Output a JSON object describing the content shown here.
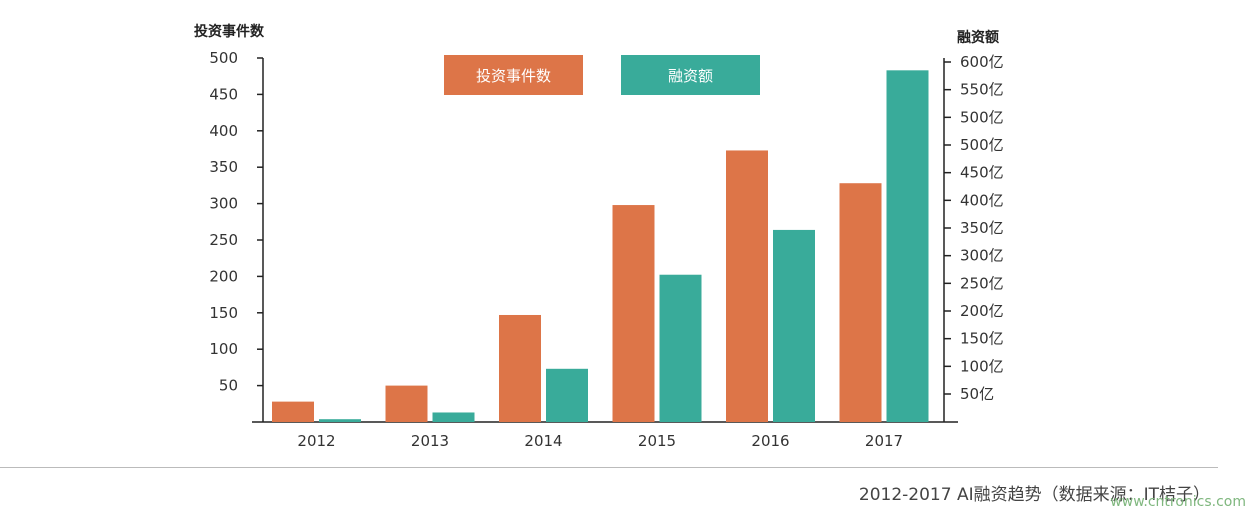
{
  "header_fragment": "",
  "chart_data": {
    "type": "bar",
    "categories": [
      "2012",
      "2013",
      "2014",
      "2015",
      "2016",
      "2017"
    ],
    "series": [
      {
        "name": "投资事件数",
        "values": [
          28,
          50,
          147,
          298,
          373,
          328
        ],
        "axis": "left",
        "color": "#dd7548"
      },
      {
        "name": "融资额",
        "values": [
          5,
          17,
          95,
          263,
          343,
          628
        ],
        "axis": "right",
        "color": "#39ab9a"
      }
    ],
    "left_axis": {
      "label": "投资事件数",
      "ticks": [
        50,
        100,
        150,
        200,
        250,
        300,
        350,
        400,
        450,
        500
      ],
      "ylim": [
        0,
        500
      ]
    },
    "right_axis": {
      "label": "融资额",
      "ticks": [
        "50亿",
        "100亿",
        "150亿",
        "200亿",
        "250亿",
        "300亿",
        "350亿",
        "400亿",
        "450亿",
        "500亿",
        "500亿",
        "550亿",
        "600亿"
      ],
      "ylim": [
        0,
        650
      ]
    },
    "legend": {
      "placement": "top-center"
    }
  },
  "caption": "2012-2017 AI融资趋势（数据来源：IT桔子）",
  "watermark": "www.cntronics.com"
}
